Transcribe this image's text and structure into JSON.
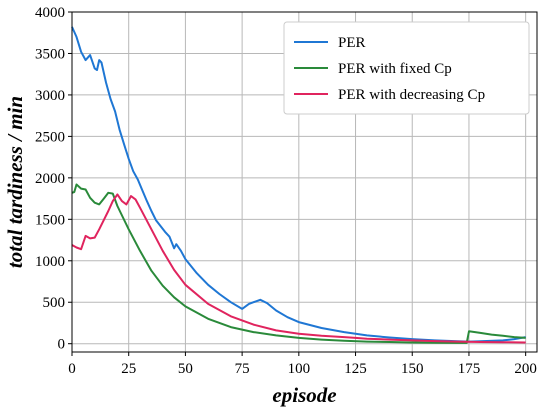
{
  "chart_data": {
    "type": "line",
    "title": "",
    "xlabel": "episode",
    "ylabel": "total tardiness / min",
    "xlim": [
      0,
      205
    ],
    "ylim": [
      -100,
      4000
    ],
    "xticks": [
      0,
      25,
      50,
      75,
      100,
      125,
      150,
      175,
      200
    ],
    "yticks": [
      0,
      500,
      1000,
      1500,
      2000,
      2500,
      3000,
      3500,
      4000
    ],
    "grid": true,
    "legend_position": "top-right",
    "series": [
      {
        "name": "PER",
        "color": "#1f77d4",
        "x": [
          0,
          2,
          4,
          6,
          8,
          10,
          11,
          12,
          13,
          15,
          17,
          19,
          21,
          23,
          25,
          27,
          29,
          31,
          33,
          35,
          37,
          39,
          41,
          43,
          45,
          46,
          48,
          50,
          55,
          60,
          65,
          70,
          75,
          78,
          80,
          83,
          86,
          90,
          95,
          100,
          110,
          120,
          130,
          140,
          150,
          160,
          170,
          175,
          180,
          190,
          195,
          200
        ],
        "y": [
          3820,
          3700,
          3520,
          3420,
          3480,
          3320,
          3300,
          3420,
          3390,
          3150,
          2950,
          2800,
          2580,
          2400,
          2230,
          2080,
          1980,
          1850,
          1720,
          1600,
          1490,
          1420,
          1350,
          1290,
          1150,
          1200,
          1120,
          1020,
          850,
          710,
          600,
          500,
          420,
          480,
          500,
          530,
          490,
          400,
          320,
          260,
          190,
          140,
          100,
          75,
          55,
          40,
          30,
          25,
          30,
          40,
          55,
          80
        ]
      },
      {
        "name": "PER with fixed Cp",
        "color": "#2a8a3a",
        "x": [
          0,
          1,
          2,
          4,
          6,
          8,
          10,
          12,
          14,
          16,
          18,
          20,
          25,
          30,
          35,
          40,
          45,
          50,
          60,
          70,
          80,
          90,
          100,
          110,
          120,
          130,
          140,
          150,
          160,
          170,
          174,
          175,
          180,
          185,
          190,
          195,
          200
        ],
        "y": [
          1820,
          1830,
          1920,
          1870,
          1860,
          1760,
          1700,
          1680,
          1750,
          1820,
          1810,
          1660,
          1380,
          1120,
          880,
          700,
          560,
          450,
          300,
          200,
          140,
          100,
          70,
          50,
          35,
          25,
          20,
          15,
          12,
          10,
          10,
          150,
          130,
          110,
          95,
          80,
          70
        ]
      },
      {
        "name": "PER with decreasing Cp",
        "color": "#e0245e",
        "x": [
          0,
          2,
          4,
          6,
          8,
          10,
          12,
          14,
          16,
          18,
          20,
          22,
          24,
          26,
          28,
          30,
          35,
          40,
          45,
          50,
          60,
          70,
          80,
          90,
          100,
          110,
          120,
          125,
          130,
          140,
          150,
          160,
          170,
          180,
          190,
          200
        ],
        "y": [
          1190,
          1160,
          1140,
          1300,
          1270,
          1280,
          1380,
          1490,
          1600,
          1720,
          1800,
          1720,
          1680,
          1780,
          1740,
          1640,
          1380,
          1120,
          890,
          710,
          480,
          330,
          230,
          160,
          120,
          95,
          80,
          70,
          60,
          50,
          40,
          32,
          25,
          20,
          18,
          15
        ]
      }
    ]
  }
}
